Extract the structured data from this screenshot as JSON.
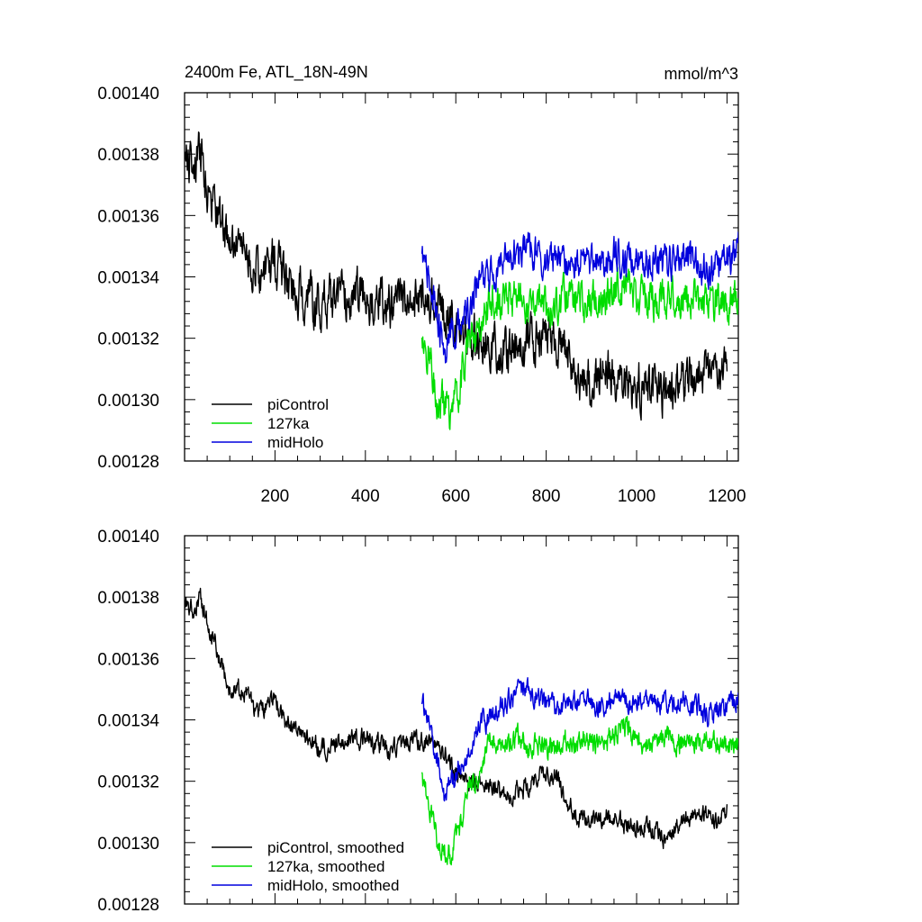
{
  "chart_data": [
    {
      "type": "line",
      "title_left": "2400m Fe, ATL_18N-49N",
      "title_right": "mmol/m^3",
      "xlim": [
        0,
        1225
      ],
      "ylim": [
        0.00128,
        0.0014
      ],
      "x_ticks": [
        200,
        400,
        600,
        800,
        1000,
        1200
      ],
      "x_tick_labels": [
        "200",
        "400",
        "600",
        "800",
        "1000",
        "1200"
      ],
      "y_ticks": [
        0.00128,
        0.0013,
        0.00132,
        0.00134,
        0.00136,
        0.00138,
        0.0014
      ],
      "y_tick_labels": [
        "0.00128",
        "0.00130",
        "0.00132",
        "0.00134",
        "0.00136",
        "0.00138",
        "0.00140"
      ],
      "legend_placement": "bottom-left",
      "series": [
        {
          "name": "piControl",
          "color": "#000000",
          "noise": 6e-06,
          "points": [
            [
              1,
              0.00138
            ],
            [
              20,
              0.001375
            ],
            [
              35,
              0.00138
            ],
            [
              50,
              0.00137
            ],
            [
              70,
              0.001362
            ],
            [
              100,
              0.00135
            ],
            [
              130,
              0.00135
            ],
            [
              160,
              0.001342
            ],
            [
              200,
              0.001345
            ],
            [
              230,
              0.001338
            ],
            [
              260,
              0.001335
            ],
            [
              300,
              0.00133
            ],
            [
              340,
              0.001333
            ],
            [
              380,
              0.001335
            ],
            [
              420,
              0.001332
            ],
            [
              460,
              0.00133
            ],
            [
              500,
              0.001334
            ],
            [
              530,
              0.001333
            ],
            [
              560,
              0.001333
            ],
            [
              590,
              0.001325
            ],
            [
              620,
              0.00132
            ],
            [
              650,
              0.00132
            ],
            [
              680,
              0.001318
            ],
            [
              720,
              0.001315
            ],
            [
              760,
              0.001318
            ],
            [
              800,
              0.001322
            ],
            [
              820,
              0.001322
            ],
            [
              840,
              0.001315
            ],
            [
              870,
              0.001308
            ],
            [
              900,
              0.001306
            ],
            [
              940,
              0.001309
            ],
            [
              980,
              0.001305
            ],
            [
              1020,
              0.001305
            ],
            [
              1060,
              0.0013
            ],
            [
              1100,
              0.001305
            ],
            [
              1140,
              0.001309
            ],
            [
              1180,
              0.001308
            ],
            [
              1200,
              0.00131
            ]
          ]
        },
        {
          "name": "127ka",
          "color": "#00dd00",
          "noise": 5e-06,
          "points": [
            [
              525,
              0.00132
            ],
            [
              545,
              0.001312
            ],
            [
              560,
              0.0013
            ],
            [
              575,
              0.001298
            ],
            [
              590,
              0.001296
            ],
            [
              610,
              0.001305
            ],
            [
              630,
              0.00132
            ],
            [
              650,
              0.00132
            ],
            [
              665,
              0.001328
            ],
            [
              680,
              0.001335
            ],
            [
              700,
              0.00133
            ],
            [
              720,
              0.001333
            ],
            [
              740,
              0.001334
            ],
            [
              760,
              0.00133
            ],
            [
              780,
              0.001333
            ],
            [
              800,
              0.001331
            ],
            [
              820,
              0.00133
            ],
            [
              840,
              0.001334
            ],
            [
              860,
              0.001332
            ],
            [
              880,
              0.001333
            ],
            [
              900,
              0.001332
            ],
            [
              920,
              0.001332
            ],
            [
              940,
              0.001334
            ],
            [
              960,
              0.001336
            ],
            [
              980,
              0.001339
            ],
            [
              1000,
              0.001332
            ],
            [
              1030,
              0.001332
            ],
            [
              1060,
              0.001334
            ],
            [
              1090,
              0.001333
            ],
            [
              1120,
              0.001332
            ],
            [
              1150,
              0.001333
            ],
            [
              1180,
              0.001332
            ],
            [
              1200,
              0.001331
            ],
            [
              1225,
              0.001333
            ]
          ]
        },
        {
          "name": "midHolo",
          "color": "#0000dd",
          "noise": 4.5e-06,
          "points": [
            [
              525,
              0.001345
            ],
            [
              540,
              0.00134
            ],
            [
              560,
              0.001326
            ],
            [
              575,
              0.001315
            ],
            [
              590,
              0.00132
            ],
            [
              610,
              0.001325
            ],
            [
              630,
              0.001328
            ],
            [
              650,
              0.001338
            ],
            [
              670,
              0.00134
            ],
            [
              700,
              0.001344
            ],
            [
              730,
              0.001348
            ],
            [
              750,
              0.00135
            ],
            [
              770,
              0.001348
            ],
            [
              800,
              0.001346
            ],
            [
              830,
              0.001344
            ],
            [
              860,
              0.001345
            ],
            [
              890,
              0.001346
            ],
            [
              920,
              0.001344
            ],
            [
              950,
              0.001347
            ],
            [
              980,
              0.001345
            ],
            [
              1010,
              0.001347
            ],
            [
              1040,
              0.001346
            ],
            [
              1070,
              0.001345
            ],
            [
              1100,
              0.001346
            ],
            [
              1130,
              0.001345
            ],
            [
              1160,
              0.001342
            ],
            [
              1190,
              0.001344
            ],
            [
              1210,
              0.001346
            ],
            [
              1225,
              0.00135
            ]
          ]
        }
      ]
    },
    {
      "type": "line",
      "xlim": [
        0,
        1225
      ],
      "ylim": [
        0.00128,
        0.0014
      ],
      "x_ticks": [
        200,
        400,
        600,
        800,
        1000,
        1200
      ],
      "y_ticks": [
        0.00128,
        0.0013,
        0.00132,
        0.00134,
        0.00136,
        0.00138,
        0.0014
      ],
      "y_tick_labels": [
        "0.00128",
        "0.00130",
        "0.00132",
        "0.00134",
        "0.00136",
        "0.00138",
        "0.00140"
      ],
      "legend_placement": "bottom-left",
      "series": [
        {
          "name": "piControl, smoothed",
          "color": "#000000",
          "noise": 2.5e-06,
          "points": [
            [
              1,
              0.001378
            ],
            [
              20,
              0.001376
            ],
            [
              35,
              0.00138
            ],
            [
              50,
              0.001372
            ],
            [
              70,
              0.001363
            ],
            [
              100,
              0.00135
            ],
            [
              130,
              0.00135
            ],
            [
              160,
              0.001342
            ],
            [
              200,
              0.001346
            ],
            [
              230,
              0.001338
            ],
            [
              260,
              0.001335
            ],
            [
              300,
              0.00133
            ],
            [
              340,
              0.001333
            ],
            [
              380,
              0.001335
            ],
            [
              420,
              0.001332
            ],
            [
              460,
              0.00133
            ],
            [
              500,
              0.001333
            ],
            [
              530,
              0.001333
            ],
            [
              560,
              0.001333
            ],
            [
              590,
              0.001325
            ],
            [
              620,
              0.00132
            ],
            [
              650,
              0.00132
            ],
            [
              680,
              0.001318
            ],
            [
              720,
              0.001316
            ],
            [
              760,
              0.001318
            ],
            [
              800,
              0.001323
            ],
            [
              820,
              0.001322
            ],
            [
              840,
              0.001315
            ],
            [
              870,
              0.001308
            ],
            [
              900,
              0.001306
            ],
            [
              940,
              0.001309
            ],
            [
              980,
              0.001305
            ],
            [
              1020,
              0.001305
            ],
            [
              1060,
              0.001301
            ],
            [
              1100,
              0.001306
            ],
            [
              1140,
              0.001309
            ],
            [
              1180,
              0.001308
            ],
            [
              1200,
              0.00131
            ]
          ]
        },
        {
          "name": "127ka, smoothed",
          "color": "#00dd00",
          "noise": 3e-06,
          "points": [
            [
              525,
              0.00132
            ],
            [
              545,
              0.00131
            ],
            [
              560,
              0.0013
            ],
            [
              575,
              0.001298
            ],
            [
              590,
              0.001296
            ],
            [
              610,
              0.001305
            ],
            [
              630,
              0.00132
            ],
            [
              650,
              0.00132
            ],
            [
              665,
              0.001328
            ],
            [
              680,
              0.001335
            ],
            [
              700,
              0.00133
            ],
            [
              720,
              0.001333
            ],
            [
              740,
              0.001334
            ],
            [
              760,
              0.00133
            ],
            [
              780,
              0.001333
            ],
            [
              800,
              0.001331
            ],
            [
              820,
              0.00133
            ],
            [
              840,
              0.001334
            ],
            [
              860,
              0.001332
            ],
            [
              880,
              0.001333
            ],
            [
              900,
              0.001332
            ],
            [
              920,
              0.001332
            ],
            [
              940,
              0.001334
            ],
            [
              960,
              0.001336
            ],
            [
              980,
              0.001339
            ],
            [
              1000,
              0.001332
            ],
            [
              1030,
              0.001332
            ],
            [
              1060,
              0.001334
            ],
            [
              1090,
              0.001333
            ],
            [
              1120,
              0.001332
            ],
            [
              1150,
              0.001333
            ],
            [
              1180,
              0.001332
            ],
            [
              1200,
              0.001331
            ],
            [
              1225,
              0.001332
            ]
          ]
        },
        {
          "name": "midHolo, smoothed",
          "color": "#0000dd",
          "noise": 2.8e-06,
          "points": [
            [
              525,
              0.001345
            ],
            [
              540,
              0.00134
            ],
            [
              560,
              0.001326
            ],
            [
              575,
              0.001315
            ],
            [
              590,
              0.00132
            ],
            [
              610,
              0.001325
            ],
            [
              630,
              0.001328
            ],
            [
              650,
              0.001338
            ],
            [
              670,
              0.00134
            ],
            [
              700,
              0.001344
            ],
            [
              730,
              0.001348
            ],
            [
              750,
              0.001351
            ],
            [
              770,
              0.001348
            ],
            [
              800,
              0.001346
            ],
            [
              830,
              0.001344
            ],
            [
              860,
              0.001345
            ],
            [
              890,
              0.001346
            ],
            [
              920,
              0.001344
            ],
            [
              950,
              0.001347
            ],
            [
              980,
              0.001345
            ],
            [
              1010,
              0.001347
            ],
            [
              1040,
              0.001346
            ],
            [
              1070,
              0.001345
            ],
            [
              1100,
              0.001346
            ],
            [
              1130,
              0.001345
            ],
            [
              1160,
              0.001341
            ],
            [
              1190,
              0.001344
            ],
            [
              1210,
              0.001346
            ],
            [
              1225,
              0.001348
            ]
          ]
        }
      ]
    }
  ]
}
